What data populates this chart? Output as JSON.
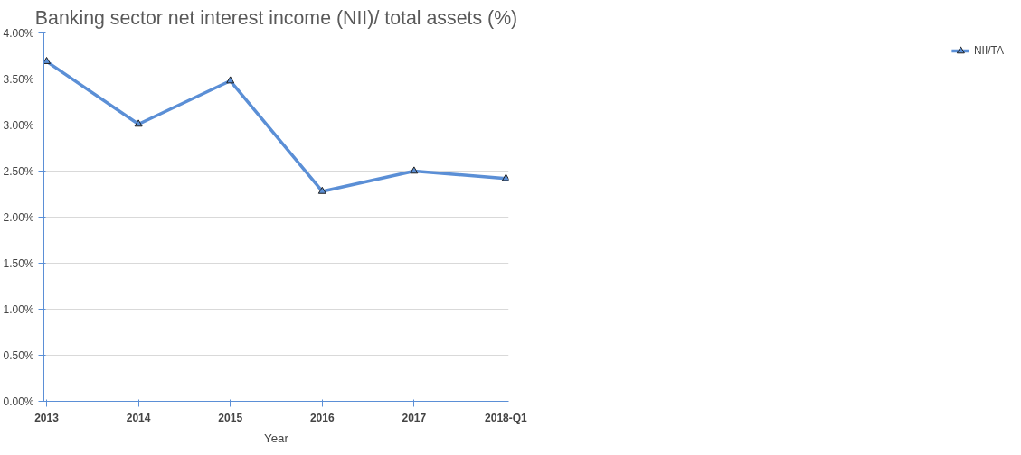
{
  "chart_data": {
    "type": "line",
    "title": "Banking sector net interest income (NII)/ total assets (%)",
    "xlabel": "Year",
    "categories": [
      "2013",
      "2014",
      "2015",
      "2016",
      "2017",
      "2018-Q1"
    ],
    "series": [
      {
        "name": "NII/TA",
        "color": "#5b8fd6",
        "values": [
          3.69,
          3.01,
          3.48,
          2.28,
          2.5,
          2.42
        ]
      }
    ],
    "ylim": [
      0,
      4
    ],
    "yticks": [
      {
        "value": 0,
        "label": "0.00%"
      },
      {
        "value": 0.5,
        "label": "0.50%"
      },
      {
        "value": 1,
        "label": "1.00%"
      },
      {
        "value": 1.5,
        "label": "1.50%"
      },
      {
        "value": 2,
        "label": "2.00%"
      },
      {
        "value": 2.5,
        "label": "2.50%"
      },
      {
        "value": 3,
        "label": "3.00%"
      },
      {
        "value": 3.5,
        "label": "3.50%"
      },
      {
        "value": 4,
        "label": "4.00%"
      }
    ],
    "grid": "y",
    "legend": "right",
    "marker": "triangle",
    "line_style": "solid"
  }
}
